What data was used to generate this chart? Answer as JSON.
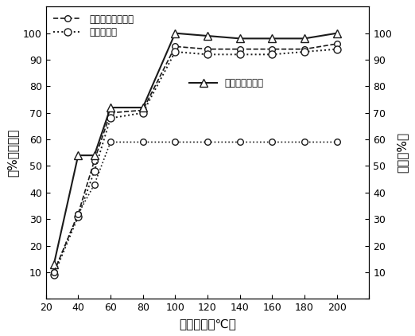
{
  "xlabel": "反应温度（℃）",
  "ylabel_left": "（%）转化率",
  "ylabel_right": "收率（%）",
  "x": [
    25,
    40,
    50,
    60,
    80,
    100,
    120,
    140,
    160,
    180,
    200
  ],
  "propylene_carbonate_conversion": [
    10,
    32,
    52,
    70,
    71,
    95,
    94,
    94,
    94,
    94,
    96
  ],
  "methanol_conversion": [
    9,
    31,
    48,
    68,
    70,
    93,
    92,
    92,
    92,
    93,
    94
  ],
  "dmc_yield": [
    13,
    54,
    54,
    72,
    72,
    100,
    99,
    98,
    98,
    98,
    100
  ],
  "pg_selectivity": [
    10,
    32,
    43,
    59,
    59,
    59,
    59,
    59,
    59,
    59,
    59
  ],
  "legend_pc": "碳酸丙烯酬转化率",
  "legend_meoh": "甲醇转化率",
  "legend_dmc": "碳酸二甲酬收率",
  "xlim": [
    20,
    220
  ],
  "ylim_left": [
    0,
    110
  ],
  "ylim_right": [
    0,
    110
  ],
  "xticks": [
    20,
    40,
    60,
    80,
    100,
    120,
    140,
    160,
    180,
    200,
    220
  ],
  "yticks_left": [
    0,
    10,
    20,
    30,
    40,
    50,
    60,
    70,
    80,
    90,
    100
  ],
  "yticks_right": [
    0,
    10,
    20,
    30,
    40,
    50,
    60,
    70,
    80,
    90,
    100
  ],
  "bg_color": "#ffffff",
  "line_color": "#1a1a1a"
}
